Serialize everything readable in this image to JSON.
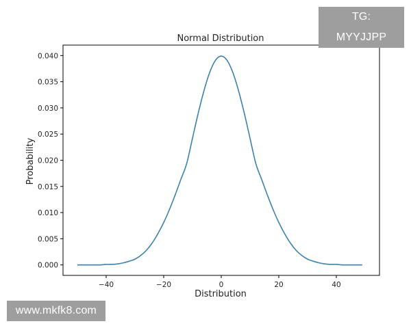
{
  "watermarks": {
    "top_right": "TG: MYYJJPP",
    "bottom_left": "www.mkfk8.com"
  },
  "chart_data": {
    "type": "line",
    "title": "Normal Distribution",
    "xlabel": "Distribution",
    "ylabel": "Probability",
    "xlim": [
      -55,
      55
    ],
    "ylim": [
      -0.002,
      0.042
    ],
    "xticks": [
      -40,
      -20,
      0,
      20,
      40
    ],
    "xtick_labels": [
      "−40",
      "−20",
      "0",
      "20",
      "40"
    ],
    "yticks": [
      0.0,
      0.005,
      0.01,
      0.015,
      0.02,
      0.025,
      0.03,
      0.035,
      0.04
    ],
    "ytick_labels": [
      "0.000",
      "0.005",
      "0.010",
      "0.015",
      "0.020",
      "0.025",
      "0.030",
      "0.035",
      "0.040"
    ],
    "grid": false,
    "line_color": "#3a81b0",
    "series": [
      {
        "x": [
          -50,
          -48,
          -46,
          -44,
          -42,
          -40,
          -38,
          -36,
          -34,
          -32,
          -30,
          -28,
          -26,
          -24,
          -22,
          -20,
          -18,
          -16,
          -14,
          -12,
          -10,
          -8,
          -6,
          -4,
          -2,
          0,
          2,
          4,
          6,
          8,
          10,
          12,
          14,
          16,
          18,
          20,
          22,
          24,
          26,
          28,
          30,
          32,
          34,
          36,
          38,
          40,
          42,
          44,
          46,
          48,
          49
        ],
        "y": [
          0.0,
          0.0,
          0.0,
          0.0,
          0.0,
          0.0001,
          0.0001,
          0.0002,
          0.0004,
          0.0007,
          0.0011,
          0.0018,
          0.0028,
          0.0042,
          0.006,
          0.0081,
          0.0106,
          0.0134,
          0.0164,
          0.0194,
          0.0242,
          0.029,
          0.0333,
          0.0368,
          0.0391,
          0.0399,
          0.0391,
          0.0368,
          0.0333,
          0.029,
          0.0242,
          0.0194,
          0.0164,
          0.0134,
          0.0106,
          0.0081,
          0.006,
          0.0042,
          0.0028,
          0.0018,
          0.0011,
          0.0007,
          0.0004,
          0.0002,
          0.0001,
          0.0001,
          0.0,
          0.0,
          0.0,
          0.0,
          0.0
        ]
      }
    ]
  }
}
